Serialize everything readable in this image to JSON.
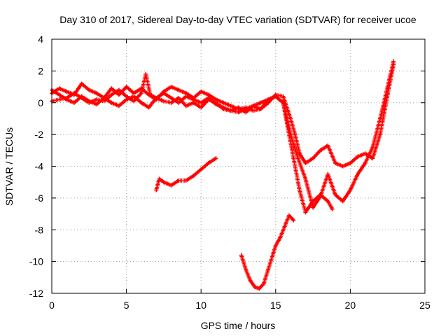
{
  "chart_data": {
    "type": "scatter",
    "title": "Day 310 of 2017, Sidereal Day-to-day VTEC variation (SDTVAR) for receiver ucoe",
    "xlabel": "GPS time / hours",
    "ylabel": "SDTVAR / TECUs",
    "xlim": [
      0,
      25
    ],
    "ylim": [
      -12,
      4
    ],
    "xticks": [
      0,
      5,
      10,
      15,
      20,
      25
    ],
    "yticks": [
      -12,
      -10,
      -8,
      -6,
      -4,
      -2,
      0,
      2,
      4
    ],
    "grid": true,
    "marker": "+",
    "color": "#ff0000",
    "series": [
      {
        "name": "arc-upper-1",
        "x": [
          0.0,
          0.5,
          1.0,
          1.5,
          2.0,
          2.5,
          3.0,
          3.5,
          4.0,
          4.5,
          5.0,
          5.5,
          6.0,
          6.5,
          7.0,
          7.5,
          8.0,
          8.5,
          9.0,
          9.5,
          10.0,
          10.5,
          11.0,
          11.5,
          12.0,
          12.5,
          13.0,
          13.5,
          14.0,
          14.5,
          15.0,
          15.5,
          16.0,
          16.3,
          16.6,
          17.0,
          17.5,
          18.0,
          18.5,
          19.0,
          19.5,
          20.0,
          20.5,
          21.0,
          21.5,
          22.0,
          22.5,
          22.9
        ],
        "y": [
          0.6,
          0.9,
          0.7,
          0.5,
          1.2,
          0.8,
          0.6,
          0.3,
          0.9,
          0.5,
          1.0,
          0.6,
          0.9,
          0.5,
          0.2,
          0.7,
          1.0,
          0.8,
          0.6,
          0.3,
          0.7,
          0.5,
          0.2,
          0.0,
          -0.2,
          -0.4,
          -0.3,
          -0.5,
          -0.4,
          0.0,
          0.5,
          0.4,
          -1.0,
          -2.0,
          -3.2,
          -3.8,
          -3.5,
          -3.0,
          -2.7,
          -3.8,
          -4.0,
          -3.8,
          -3.4,
          -3.2,
          -3.5,
          -2.0,
          0.5,
          2.4
        ]
      },
      {
        "name": "arc-upper-2",
        "x": [
          0.0,
          0.5,
          1.0,
          1.5,
          2.0,
          2.5,
          3.0,
          3.5,
          4.0,
          4.5,
          5.0,
          5.5,
          6.0,
          6.3,
          6.6,
          7.0,
          7.5,
          8.0,
          8.5,
          9.0,
          9.5,
          10.0,
          10.5,
          11.0,
          11.5,
          12.0,
          12.5,
          13.0,
          13.5,
          14.0,
          14.5,
          15.0,
          15.5,
          16.0,
          16.5,
          17.0,
          17.5,
          18.0,
          18.5,
          19.0,
          19.5,
          20.0,
          20.5,
          21.0,
          21.5,
          22.0,
          22.5,
          22.9
        ],
        "y": [
          0.1,
          0.2,
          0.3,
          0.6,
          0.3,
          0.0,
          0.2,
          0.1,
          0.5,
          0.8,
          0.4,
          0.1,
          0.6,
          1.8,
          0.5,
          0.3,
          0.1,
          0.0,
          0.3,
          -0.2,
          0.0,
          -0.3,
          0.2,
          0.0,
          -0.4,
          -0.5,
          -0.3,
          -0.6,
          -0.2,
          -0.4,
          0.2,
          0.4,
          0.0,
          -2.0,
          -3.5,
          -4.8,
          -6.6,
          -5.9,
          -4.5,
          -5.8,
          -6.2,
          -5.5,
          -4.5,
          -3.8,
          -2.8,
          -1.0,
          1.0,
          2.6
        ]
      },
      {
        "name": "arc-lower-3",
        "x": [
          0.0,
          0.5,
          1.0,
          1.5,
          2.0,
          2.5,
          3.0,
          3.5,
          4.0,
          4.5,
          5.0,
          5.5,
          6.0,
          6.5,
          7.0,
          7.5,
          8.0,
          8.5,
          9.0,
          9.5,
          10.0,
          10.5,
          11.0,
          11.5,
          12.0,
          12.5,
          13.0,
          13.5,
          14.0,
          14.5,
          15.0,
          15.5,
          15.8,
          16.2,
          16.6,
          17.0,
          17.5,
          18.0,
          18.5,
          18.8
        ],
        "y": [
          0.8,
          0.5,
          0.2,
          0.0,
          0.4,
          0.1,
          -0.1,
          0.3,
          0.0,
          -0.2,
          0.2,
          0.4,
          0.0,
          -0.3,
          0.3,
          0.6,
          0.3,
          0.0,
          0.4,
          0.2,
          0.0,
          0.3,
          -0.1,
          -0.3,
          -0.5,
          -0.6,
          -0.4,
          -0.2,
          0.0,
          0.2,
          0.4,
          0.0,
          -1.5,
          -3.5,
          -5.5,
          -6.9,
          -6.2,
          -5.8,
          -6.2,
          -6.7
        ]
      },
      {
        "name": "arc-mid",
        "x": [
          7.0,
          7.2,
          7.5,
          8.0,
          8.5,
          9.0,
          9.5,
          10.0,
          10.5,
          11.0
        ],
        "y": [
          -5.5,
          -4.8,
          -5.0,
          -5.2,
          -4.9,
          -4.9,
          -4.6,
          -4.2,
          -3.8,
          -3.5
        ]
      },
      {
        "name": "arc-low",
        "x": [
          12.7,
          13.0,
          13.3,
          13.6,
          13.9,
          14.2,
          14.5,
          14.8,
          15.0,
          15.3,
          15.6,
          15.9,
          16.2
        ],
        "y": [
          -9.6,
          -10.5,
          -11.2,
          -11.6,
          -11.7,
          -11.4,
          -10.5,
          -9.6,
          -9.0,
          -8.5,
          -7.8,
          -7.1,
          -7.4
        ]
      }
    ]
  }
}
